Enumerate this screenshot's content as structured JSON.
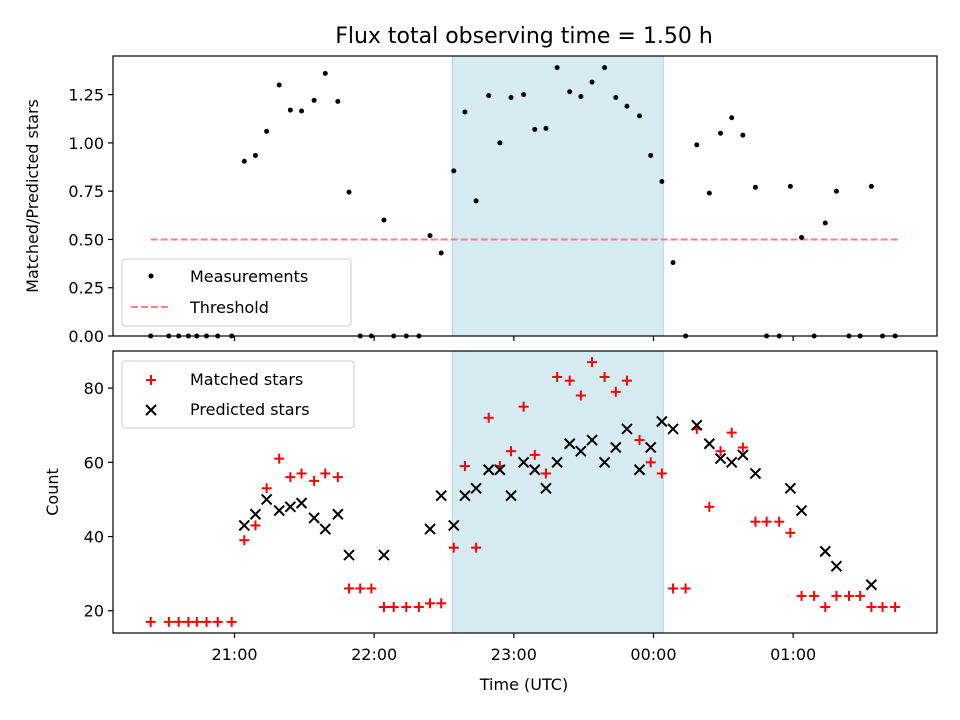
{
  "chart_data": [
    {
      "type": "scatter",
      "title": "Flux total observing time = 1.50 h",
      "xlabel": "",
      "ylabel": "Matched/Predicted stars",
      "x_unit": "UTC time, hours past 21:00",
      "xlim": [
        -0.87,
        5.03
      ],
      "ylim": [
        0.0,
        1.45
      ],
      "yticks": [
        "0.00",
        "0.25",
        "0.50",
        "0.75",
        "1.00",
        "1.25"
      ],
      "xticks": [
        "21:00",
        "22:00",
        "23:00",
        "00:00",
        "01:00"
      ],
      "highlight_span": {
        "from": 1.56,
        "to": 3.07
      },
      "legend": {
        "placement": "lower-left"
      },
      "threshold": {
        "name": "Threshold",
        "y": 0.5,
        "x_range": [
          -0.6,
          4.75
        ]
      },
      "series": [
        {
          "name": "Measurements",
          "points": [
            [
              -0.6,
              0.0
            ],
            [
              -0.47,
              0.0
            ],
            [
              -0.4,
              0.0
            ],
            [
              -0.33,
              0.0
            ],
            [
              -0.27,
              0.0
            ],
            [
              -0.2,
              0.0
            ],
            [
              -0.12,
              0.0
            ],
            [
              -0.02,
              0.0
            ],
            [
              0.07,
              0.905
            ],
            [
              0.15,
              0.935
            ],
            [
              0.23,
              1.06
            ],
            [
              0.32,
              1.3
            ],
            [
              0.4,
              1.17
            ],
            [
              0.48,
              1.165
            ],
            [
              0.57,
              1.22
            ],
            [
              0.65,
              1.36
            ],
            [
              0.74,
              1.215
            ],
            [
              0.82,
              0.745
            ],
            [
              0.9,
              0.0
            ],
            [
              0.98,
              0.0
            ],
            [
              1.07,
              0.6
            ],
            [
              1.14,
              0.0
            ],
            [
              1.23,
              0.0
            ],
            [
              1.32,
              0.0
            ],
            [
              1.4,
              0.52
            ],
            [
              1.48,
              0.43
            ],
            [
              1.57,
              0.855
            ],
            [
              1.65,
              1.16
            ],
            [
              1.73,
              0.7
            ],
            [
              1.82,
              1.245
            ],
            [
              1.9,
              1.0
            ],
            [
              1.98,
              1.235
            ],
            [
              2.07,
              1.25
            ],
            [
              2.15,
              1.07
            ],
            [
              2.23,
              1.075
            ],
            [
              2.31,
              1.39
            ],
            [
              2.4,
              1.265
            ],
            [
              2.48,
              1.24
            ],
            [
              2.56,
              1.315
            ],
            [
              2.65,
              1.39
            ],
            [
              2.73,
              1.235
            ],
            [
              2.81,
              1.19
            ],
            [
              2.9,
              1.14
            ],
            [
              2.98,
              0.935
            ],
            [
              3.06,
              0.8
            ],
            [
              3.14,
              0.38
            ],
            [
              3.23,
              0.0
            ],
            [
              3.31,
              0.99
            ],
            [
              3.4,
              0.74
            ],
            [
              3.48,
              1.05
            ],
            [
              3.56,
              1.13
            ],
            [
              3.64,
              1.04
            ],
            [
              3.73,
              0.77
            ],
            [
              3.81,
              0.0
            ],
            [
              3.9,
              0.0
            ],
            [
              3.98,
              0.775
            ],
            [
              4.06,
              0.51
            ],
            [
              4.15,
              0.0
            ],
            [
              4.23,
              0.585
            ],
            [
              4.31,
              0.75
            ],
            [
              4.4,
              0.0
            ],
            [
              4.48,
              0.0
            ],
            [
              4.56,
              0.775
            ],
            [
              4.64,
              0.0
            ],
            [
              4.73,
              0.0
            ]
          ]
        }
      ]
    },
    {
      "type": "scatter",
      "title": "",
      "xlabel": "Time (UTC)",
      "ylabel": "Count",
      "x_unit": "UTC time, hours past 21:00",
      "xlim": [
        -0.87,
        5.03
      ],
      "ylim": [
        14,
        90
      ],
      "yticks": [
        20,
        40,
        60,
        80
      ],
      "xticks": [
        "21:00",
        "22:00",
        "23:00",
        "00:00",
        "01:00"
      ],
      "highlight_span": {
        "from": 1.56,
        "to": 3.07
      },
      "legend": {
        "placement": "top-left"
      },
      "series": [
        {
          "name": "Matched stars",
          "marker": "plus",
          "color": "#ff0000",
          "points": [
            [
              -0.6,
              17
            ],
            [
              -0.47,
              17
            ],
            [
              -0.4,
              17
            ],
            [
              -0.33,
              17
            ],
            [
              -0.27,
              17
            ],
            [
              -0.2,
              17
            ],
            [
              -0.12,
              17
            ],
            [
              -0.02,
              17
            ],
            [
              0.07,
              39
            ],
            [
              0.15,
              43
            ],
            [
              0.23,
              53
            ],
            [
              0.32,
              61
            ],
            [
              0.4,
              56
            ],
            [
              0.48,
              57
            ],
            [
              0.57,
              55
            ],
            [
              0.65,
              57
            ],
            [
              0.74,
              56
            ],
            [
              0.82,
              26
            ],
            [
              0.9,
              26
            ],
            [
              0.98,
              26
            ],
            [
              1.07,
              21
            ],
            [
              1.14,
              21
            ],
            [
              1.23,
              21
            ],
            [
              1.32,
              21
            ],
            [
              1.4,
              22
            ],
            [
              1.48,
              22
            ],
            [
              1.57,
              37
            ],
            [
              1.65,
              59
            ],
            [
              1.73,
              37
            ],
            [
              1.82,
              72
            ],
            [
              1.9,
              59
            ],
            [
              1.98,
              63
            ],
            [
              2.07,
              75
            ],
            [
              2.15,
              62
            ],
            [
              2.23,
              57
            ],
            [
              2.31,
              83
            ],
            [
              2.4,
              82
            ],
            [
              2.48,
              78
            ],
            [
              2.56,
              87
            ],
            [
              2.65,
              83
            ],
            [
              2.73,
              79
            ],
            [
              2.81,
              82
            ],
            [
              2.9,
              66
            ],
            [
              2.98,
              60
            ],
            [
              3.06,
              57
            ],
            [
              3.14,
              26
            ],
            [
              3.23,
              26
            ],
            [
              3.31,
              69
            ],
            [
              3.4,
              48
            ],
            [
              3.48,
              63
            ],
            [
              3.56,
              68
            ],
            [
              3.64,
              64
            ],
            [
              3.73,
              44
            ],
            [
              3.81,
              44
            ],
            [
              3.9,
              44
            ],
            [
              3.98,
              41
            ],
            [
              4.06,
              24
            ],
            [
              4.15,
              24
            ],
            [
              4.23,
              21
            ],
            [
              4.31,
              24
            ],
            [
              4.4,
              24
            ],
            [
              4.48,
              24
            ],
            [
              4.56,
              21
            ],
            [
              4.64,
              21
            ],
            [
              4.73,
              21
            ]
          ]
        },
        {
          "name": "Predicted stars",
          "marker": "x",
          "color": "#000000",
          "points": [
            [
              0.07,
              43
            ],
            [
              0.15,
              46
            ],
            [
              0.23,
              50
            ],
            [
              0.32,
              47
            ],
            [
              0.4,
              48
            ],
            [
              0.48,
              49
            ],
            [
              0.57,
              45
            ],
            [
              0.65,
              42
            ],
            [
              0.74,
              46
            ],
            [
              0.82,
              35
            ],
            [
              1.07,
              35
            ],
            [
              1.4,
              42
            ],
            [
              1.48,
              51
            ],
            [
              1.57,
              43
            ],
            [
              1.65,
              51
            ],
            [
              1.73,
              53
            ],
            [
              1.82,
              58
            ],
            [
              1.9,
              58
            ],
            [
              1.98,
              51
            ],
            [
              2.07,
              60
            ],
            [
              2.15,
              58
            ],
            [
              2.23,
              53
            ],
            [
              2.31,
              60
            ],
            [
              2.4,
              65
            ],
            [
              2.48,
              63
            ],
            [
              2.56,
              66
            ],
            [
              2.65,
              60
            ],
            [
              2.73,
              64
            ],
            [
              2.81,
              69
            ],
            [
              2.9,
              58
            ],
            [
              2.98,
              64
            ],
            [
              3.06,
              71
            ],
            [
              3.14,
              69
            ],
            [
              3.31,
              70
            ],
            [
              3.4,
              65
            ],
            [
              3.48,
              61
            ],
            [
              3.56,
              60
            ],
            [
              3.64,
              62
            ],
            [
              3.73,
              57
            ],
            [
              3.98,
              53
            ],
            [
              4.06,
              47
            ],
            [
              4.23,
              36
            ],
            [
              4.31,
              32
            ],
            [
              4.56,
              27
            ]
          ]
        }
      ]
    }
  ]
}
